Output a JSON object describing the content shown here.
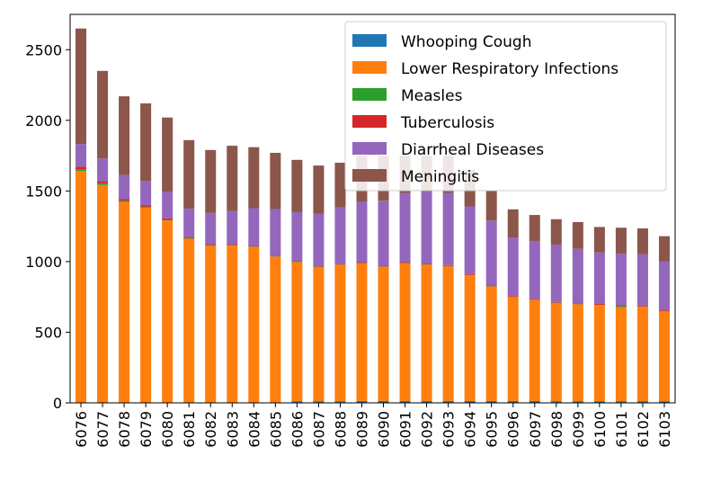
{
  "chart_data": {
    "type": "bar",
    "stacked": true,
    "categories": [
      "6076",
      "6077",
      "6078",
      "6079",
      "6080",
      "6081",
      "6082",
      "6083",
      "6084",
      "6085",
      "6086",
      "6087",
      "6088",
      "6089",
      "6090",
      "6091",
      "6092",
      "6093",
      "6094",
      "6095",
      "6096",
      "6097",
      "6098",
      "6099",
      "6100",
      "6101",
      "6102",
      "6103"
    ],
    "ylim": [
      0,
      2750
    ],
    "yticks": [
      0,
      500,
      1000,
      1500,
      2000,
      2500
    ],
    "legend_position": "upper-right",
    "series": [
      {
        "name": "Whooping Cough",
        "color": "#1f77b4",
        "values": [
          2,
          2,
          2,
          2,
          2,
          2,
          2,
          3,
          3,
          3,
          12,
          12,
          12,
          13,
          13,
          13,
          13,
          13,
          13,
          13,
          13,
          13,
          12,
          12,
          12,
          12,
          12,
          12
        ]
      },
      {
        "name": "Lower Respiratory Infections",
        "color": "#ff7f0e",
        "values": [
          1640,
          1540,
          1420,
          1380,
          1290,
          1160,
          1110,
          1110,
          1100,
          1030,
          985,
          950,
          965,
          975,
          950,
          975,
          965,
          955,
          890,
          810,
          735,
          715,
          695,
          685,
          680,
          665,
          668,
          635
        ]
      },
      {
        "name": "Measles",
        "color": "#2ca02c",
        "values": [
          12,
          12,
          8,
          6,
          4,
          4,
          4,
          3,
          3,
          3,
          2,
          2,
          2,
          2,
          2,
          2,
          2,
          2,
          2,
          2,
          2,
          2,
          2,
          2,
          2,
          8,
          2,
          2
        ]
      },
      {
        "name": "Tuberculosis",
        "color": "#d62728",
        "values": [
          18,
          16,
          14,
          12,
          10,
          8,
          8,
          7,
          7,
          6,
          6,
          6,
          6,
          6,
          6,
          6,
          6,
          6,
          6,
          6,
          6,
          6,
          6,
          6,
          6,
          6,
          6,
          6
        ]
      },
      {
        "name": "Diarrheal Diseases",
        "color": "#9467bd",
        "values": [
          160,
          160,
          170,
          170,
          190,
          200,
          220,
          235,
          265,
          330,
          345,
          370,
          400,
          430,
          460,
          490,
          510,
          510,
          480,
          460,
          415,
          410,
          405,
          385,
          365,
          365,
          365,
          345
        ]
      },
      {
        "name": "Meningitis",
        "color": "#8c564b",
        "values": [
          818,
          620,
          556,
          550,
          524,
          486,
          446,
          462,
          432,
          398,
          370,
          340,
          315,
          324,
          319,
          264,
          254,
          264,
          259,
          209,
          199,
          184,
          180,
          190,
          180,
          184,
          182,
          180
        ]
      }
    ]
  }
}
